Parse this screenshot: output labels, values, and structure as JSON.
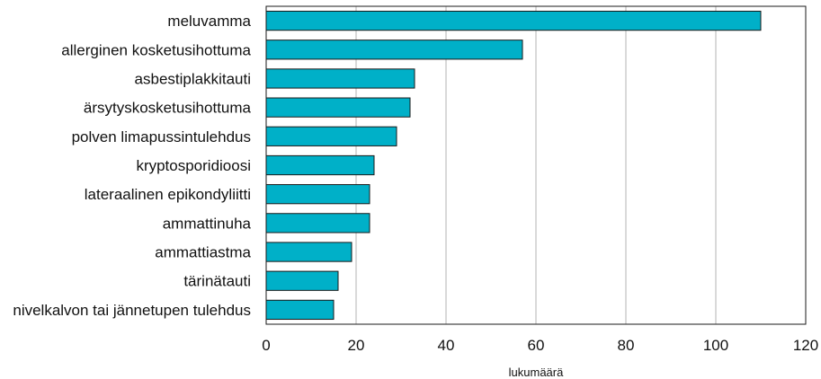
{
  "chart_data": {
    "type": "bar",
    "orientation": "horizontal",
    "title": "",
    "xlabel": "lukumäärä",
    "ylabel": "",
    "categories": [
      "meluvamma",
      "allerginen kosketusihottuma",
      "asbestiplakkitauti",
      "ärsytyskosketusihottuma",
      "polven limapussintulehdus",
      "kryptosporidioosi",
      "lateraalinen epikondyliitti",
      "ammattinuha",
      "ammattiastma",
      "tärinätauti",
      "nivelkalvon tai jännetupen tulehdus"
    ],
    "values": [
      110,
      57,
      33,
      32,
      29,
      24,
      23,
      23,
      19,
      16,
      15
    ],
    "xlim": [
      0,
      120
    ],
    "xticks": [
      0,
      20,
      40,
      60,
      80,
      100,
      120
    ],
    "grid": "vertical",
    "legend": "none",
    "bar_color": "#00b0c8",
    "bar_edge_color": "#1a1a1a",
    "grid_color": "#b3b3b3"
  }
}
